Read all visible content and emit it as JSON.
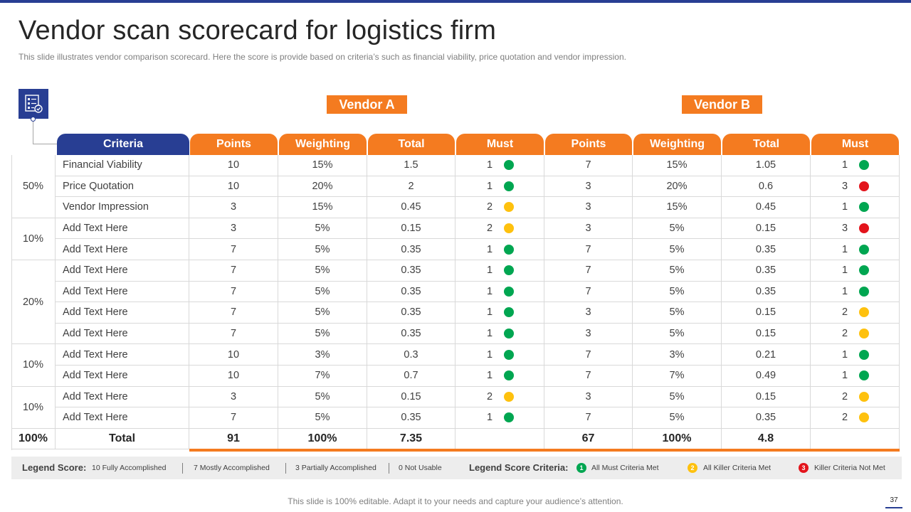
{
  "title": "Vendor scan scorecard for logistics firm",
  "subtitle": "This slide illustrates vendor  comparison scorecard. Here the score is provide  based on criteria’s such as financial viability, price quotation and vendor  impression.",
  "icon": "document-checklist-icon",
  "vendors": {
    "a": "Vendor A",
    "b": "Vendor B"
  },
  "headers": {
    "criteria": "Criteria",
    "vendor_cols": [
      "Points",
      "Weighting",
      "Total",
      "Must"
    ]
  },
  "groups": [
    {
      "weight": "50%",
      "rows": [
        0,
        1,
        2
      ]
    },
    {
      "weight": "10%",
      "rows": [
        3,
        4
      ]
    },
    {
      "weight": "20%",
      "rows": [
        5,
        6,
        7,
        8
      ]
    },
    {
      "weight": "10%",
      "rows": [
        9,
        10
      ]
    },
    {
      "weight": "10%",
      "rows": [
        11,
        12
      ]
    }
  ],
  "rows": [
    {
      "criteria": "Financial Viability",
      "a": {
        "points": "10",
        "weighting": "15%",
        "total": "1.5",
        "must": "1",
        "status": "green"
      },
      "b": {
        "points": "7",
        "weighting": "15%",
        "total": "1.05",
        "must": "1",
        "status": "green"
      }
    },
    {
      "criteria": "Price Quotation",
      "a": {
        "points": "10",
        "weighting": "20%",
        "total": "2",
        "must": "1",
        "status": "green"
      },
      "b": {
        "points": "3",
        "weighting": "20%",
        "total": "0.6",
        "must": "3",
        "status": "red"
      }
    },
    {
      "criteria": "Vendor Impression",
      "a": {
        "points": "3",
        "weighting": "15%",
        "total": "0.45",
        "must": "2",
        "status": "yellow"
      },
      "b": {
        "points": "3",
        "weighting": "15%",
        "total": "0.45",
        "must": "1",
        "status": "green"
      }
    },
    {
      "criteria": "Add Text Here",
      "a": {
        "points": "3",
        "weighting": "5%",
        "total": "0.15",
        "must": "2",
        "status": "yellow"
      },
      "b": {
        "points": "3",
        "weighting": "5%",
        "total": "0.15",
        "must": "3",
        "status": "red"
      }
    },
    {
      "criteria": "Add Text Here",
      "a": {
        "points": "7",
        "weighting": "5%",
        "total": "0.35",
        "must": "1",
        "status": "green"
      },
      "b": {
        "points": "7",
        "weighting": "5%",
        "total": "0.35",
        "must": "1",
        "status": "green"
      }
    },
    {
      "criteria": "Add Text Here",
      "a": {
        "points": "7",
        "weighting": "5%",
        "total": "0.35",
        "must": "1",
        "status": "green"
      },
      "b": {
        "points": "7",
        "weighting": "5%",
        "total": "0.35",
        "must": "1",
        "status": "green"
      }
    },
    {
      "criteria": "Add Text Here",
      "a": {
        "points": "7",
        "weighting": "5%",
        "total": "0.35",
        "must": "1",
        "status": "green"
      },
      "b": {
        "points": "7",
        "weighting": "5%",
        "total": "0.35",
        "must": "1",
        "status": "green"
      }
    },
    {
      "criteria": "Add Text Here",
      "a": {
        "points": "7",
        "weighting": "5%",
        "total": "0.35",
        "must": "1",
        "status": "green"
      },
      "b": {
        "points": "3",
        "weighting": "5%",
        "total": "0.15",
        "must": "2",
        "status": "yellow"
      }
    },
    {
      "criteria": "Add Text Here",
      "a": {
        "points": "7",
        "weighting": "5%",
        "total": "0.35",
        "must": "1",
        "status": "green"
      },
      "b": {
        "points": "3",
        "weighting": "5%",
        "total": "0.15",
        "must": "2",
        "status": "yellow"
      }
    },
    {
      "criteria": "Add Text Here",
      "a": {
        "points": "10",
        "weighting": "3%",
        "total": "0.3",
        "must": "1",
        "status": "green"
      },
      "b": {
        "points": "7",
        "weighting": "3%",
        "total": "0.21",
        "must": "1",
        "status": "green"
      }
    },
    {
      "criteria": "Add Text Here",
      "a": {
        "points": "10",
        "weighting": "7%",
        "total": "0.7",
        "must": "1",
        "status": "green"
      },
      "b": {
        "points": "7",
        "weighting": "7%",
        "total": "0.49",
        "must": "1",
        "status": "green"
      }
    },
    {
      "criteria": "Add Text Here",
      "a": {
        "points": "3",
        "weighting": "5%",
        "total": "0.15",
        "must": "2",
        "status": "yellow"
      },
      "b": {
        "points": "3",
        "weighting": "5%",
        "total": "0.15",
        "must": "2",
        "status": "yellow"
      }
    },
    {
      "criteria": "Add Text Here",
      "a": {
        "points": "7",
        "weighting": "5%",
        "total": "0.35",
        "must": "1",
        "status": "green"
      },
      "b": {
        "points": "7",
        "weighting": "5%",
        "total": "0.35",
        "must": "2",
        "status": "yellow"
      }
    }
  ],
  "totals": {
    "weight": "100%",
    "label": "Total",
    "a": {
      "points": "91",
      "weighting": "100%",
      "total": "7.35"
    },
    "b": {
      "points": "67",
      "weighting": "100%",
      "total": "4.8"
    }
  },
  "legend": {
    "score_label": "Legend Score:",
    "score_items": [
      "10 Fully Accomplished",
      "7 Mostly Accomplished",
      "3 Partially Accomplished",
      "0 Not Usable"
    ],
    "criteria_label": "Legend Score Criteria:",
    "criteria_items": [
      {
        "num": "1",
        "text": "All Must Criteria Met",
        "status": "green"
      },
      {
        "num": "2",
        "text": "All Killer Criteria Met",
        "status": "yellow"
      },
      {
        "num": "3",
        "text": "Killer Criteria Not Met",
        "status": "red"
      }
    ]
  },
  "colors": {
    "navy": "#283e93",
    "orange": "#f47b20",
    "green": "#00a651",
    "yellow": "#fec10e",
    "red": "#e3141c"
  },
  "footer": "This slide is 100% editable. Adapt it to your needs and capture your audience’s attention.",
  "page_number": "37"
}
